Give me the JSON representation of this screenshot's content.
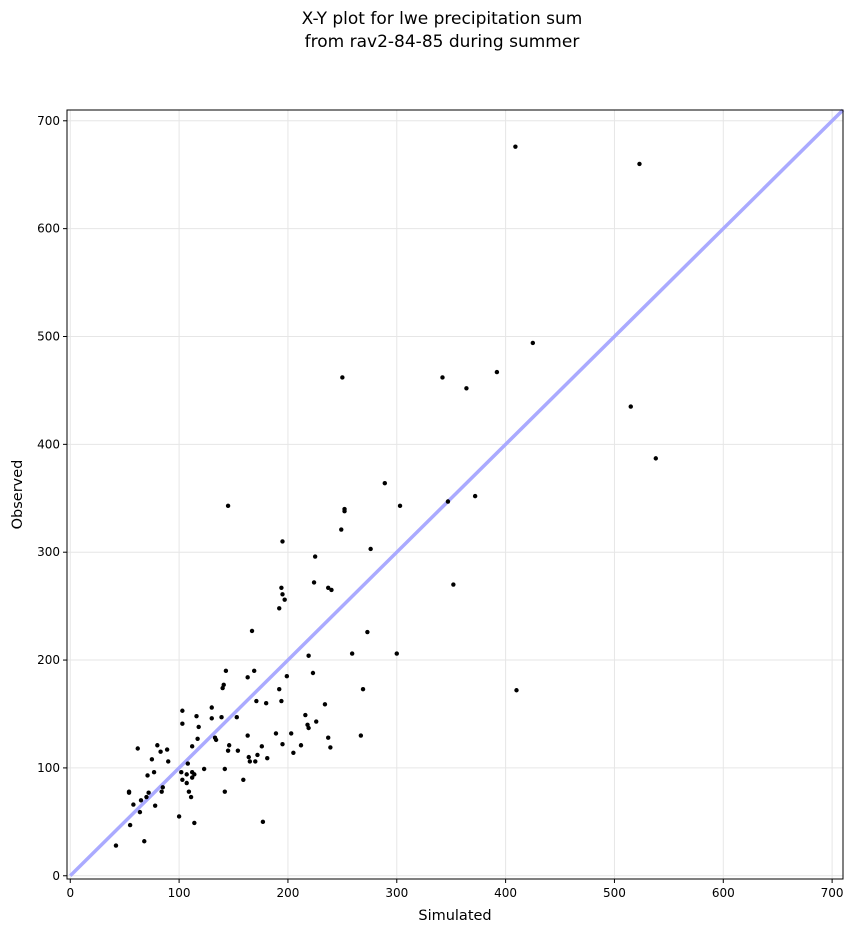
{
  "chart_data": {
    "type": "scatter",
    "title_line1": "X-Y plot for lwe precipitation sum",
    "title_line2": "from rav2-84-85 during summer",
    "xlabel": "Simulated",
    "ylabel": "Observed",
    "xlim": [
      -3,
      710
    ],
    "ylim": [
      -3,
      710
    ],
    "xticks": [
      0,
      100,
      200,
      300,
      400,
      500,
      600,
      700
    ],
    "yticks": [
      0,
      100,
      200,
      300,
      400,
      500,
      600,
      700
    ],
    "grid": true,
    "reference_line": {
      "from": [
        0,
        0
      ],
      "to": [
        710,
        710
      ],
      "color": "#aaaaff"
    },
    "point_color": "#000000",
    "points": [
      [
        42,
        28
      ],
      [
        54,
        78
      ],
      [
        54,
        77
      ],
      [
        55,
        47
      ],
      [
        58,
        66
      ],
      [
        62,
        118
      ],
      [
        64,
        59
      ],
      [
        65,
        70
      ],
      [
        68,
        32
      ],
      [
        70,
        73
      ],
      [
        71,
        93
      ],
      [
        72,
        77
      ],
      [
        75,
        108
      ],
      [
        77,
        96
      ],
      [
        78,
        65
      ],
      [
        80,
        121
      ],
      [
        83,
        115
      ],
      [
        84,
        78
      ],
      [
        85,
        82
      ],
      [
        89,
        117
      ],
      [
        90,
        106
      ],
      [
        100,
        55
      ],
      [
        102,
        96
      ],
      [
        103,
        153
      ],
      [
        103,
        141
      ],
      [
        103,
        89
      ],
      [
        107,
        86
      ],
      [
        107,
        94
      ],
      [
        108,
        104
      ],
      [
        109,
        78
      ],
      [
        111,
        73
      ],
      [
        112,
        120
      ],
      [
        112,
        91
      ],
      [
        112,
        96
      ],
      [
        114,
        49
      ],
      [
        114,
        94
      ],
      [
        116,
        148
      ],
      [
        117,
        127
      ],
      [
        118,
        138
      ],
      [
        123,
        99
      ],
      [
        130,
        156
      ],
      [
        130,
        146
      ],
      [
        133,
        128
      ],
      [
        134,
        126
      ],
      [
        139,
        147
      ],
      [
        140,
        174
      ],
      [
        141,
        177
      ],
      [
        142,
        99
      ],
      [
        142,
        78
      ],
      [
        143,
        190
      ],
      [
        145,
        116
      ],
      [
        145,
        343
      ],
      [
        146,
        121
      ],
      [
        153,
        147
      ],
      [
        154,
        116
      ],
      [
        159,
        89
      ],
      [
        163,
        184
      ],
      [
        163,
        130
      ],
      [
        164,
        110
      ],
      [
        165,
        106
      ],
      [
        167,
        227
      ],
      [
        169,
        190
      ],
      [
        170,
        106
      ],
      [
        171,
        162
      ],
      [
        172,
        112
      ],
      [
        176,
        120
      ],
      [
        177,
        50
      ],
      [
        180,
        160
      ],
      [
        181,
        109
      ],
      [
        189,
        132
      ],
      [
        192,
        173
      ],
      [
        192,
        248
      ],
      [
        194,
        267
      ],
      [
        194,
        162
      ],
      [
        195,
        261
      ],
      [
        195,
        310
      ],
      [
        195,
        122
      ],
      [
        197,
        256
      ],
      [
        199,
        185
      ],
      [
        203,
        132
      ],
      [
        205,
        114
      ],
      [
        212,
        121
      ],
      [
        216,
        149
      ],
      [
        218,
        140
      ],
      [
        219,
        204
      ],
      [
        219,
        137
      ],
      [
        223,
        188
      ],
      [
        224,
        272
      ],
      [
        225,
        296
      ],
      [
        226,
        143
      ],
      [
        234,
        159
      ],
      [
        237,
        267
      ],
      [
        237,
        128
      ],
      [
        239,
        119
      ],
      [
        240,
        265
      ],
      [
        249,
        321
      ],
      [
        250,
        462
      ],
      [
        252,
        338
      ],
      [
        252,
        340
      ],
      [
        259,
        206
      ],
      [
        267,
        130
      ],
      [
        269,
        173
      ],
      [
        273,
        226
      ],
      [
        276,
        303
      ],
      [
        289,
        364
      ],
      [
        300,
        206
      ],
      [
        303,
        343
      ],
      [
        342,
        462
      ],
      [
        347,
        347
      ],
      [
        352,
        270
      ],
      [
        364,
        452
      ],
      [
        372,
        352
      ],
      [
        392,
        467
      ],
      [
        409,
        676
      ],
      [
        410,
        172
      ],
      [
        425,
        494
      ],
      [
        515,
        435
      ],
      [
        523,
        660
      ],
      [
        538,
        387
      ]
    ]
  }
}
